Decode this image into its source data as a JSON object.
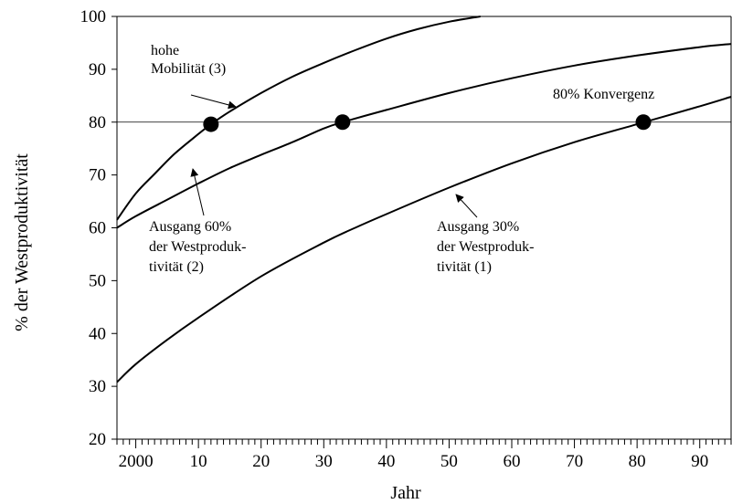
{
  "chart_data": {
    "type": "line",
    "title": "",
    "xlabel": "Jahr",
    "ylabel": "% der Westproduktivität",
    "xlim": [
      1997,
      2095
    ],
    "ylim": [
      20,
      100
    ],
    "x_ticks": [
      2000,
      2010,
      2020,
      2030,
      2040,
      2050,
      2060,
      2070,
      2080,
      2090
    ],
    "x_tick_labels": [
      "2000",
      "10",
      "20",
      "30",
      "40",
      "50",
      "60",
      "70",
      "80",
      "90"
    ],
    "y_ticks": [
      20,
      30,
      40,
      50,
      60,
      70,
      80,
      90,
      100
    ],
    "y_tick_labels": [
      "20",
      "30",
      "40",
      "50",
      "60",
      "70",
      "80",
      "90",
      "100"
    ],
    "grid": false,
    "reference_line": {
      "y": 80,
      "label": "80% Konvergenz"
    },
    "series": [
      {
        "id": "s3",
        "label": "hohe Mobilität (3)",
        "x": [
          1997,
          2000,
          2003,
          2006,
          2009,
          2012,
          2015,
          2020,
          2025,
          2030,
          2035,
          2040,
          2045,
          2050,
          2055
        ],
        "y": [
          61.5,
          66.5,
          70.2,
          73.8,
          76.8,
          79.6,
          82.0,
          85.5,
          88.6,
          91.2,
          93.6,
          95.8,
          97.6,
          99.0,
          100
        ]
      },
      {
        "id": "s2",
        "label": "Ausgang 60% der Westproduktivität (2)",
        "x": [
          1997,
          2000,
          2005,
          2010,
          2015,
          2020,
          2025,
          2030,
          2033,
          2040,
          2050,
          2060,
          2070,
          2080,
          2090,
          2095
        ],
        "y": [
          60,
          62.2,
          65.3,
          68.4,
          71.3,
          73.8,
          76.2,
          78.8,
          80,
          82.3,
          85.5,
          88.3,
          90.7,
          92.6,
          94.2,
          94.8
        ]
      },
      {
        "id": "s1",
        "label": "Ausgang 30% der Westproduktivität (1)",
        "x": [
          1997,
          2000,
          2005,
          2010,
          2020,
          2030,
          2035,
          2040,
          2050,
          2060,
          2070,
          2080,
          2090,
          2095
        ],
        "y": [
          30.8,
          34.2,
          38.8,
          43.0,
          50.8,
          57.2,
          60.0,
          62.6,
          67.6,
          72.2,
          76.2,
          79.6,
          83.0,
          84.8
        ]
      }
    ],
    "markers": [
      {
        "x": 2012,
        "y": 79.6
      },
      {
        "x": 2033,
        "y": 80
      },
      {
        "x": 2081,
        "y": 80
      }
    ],
    "annotations": [
      {
        "id": "a3",
        "lines": [
          "hohe",
          "Mobilität (3)"
        ]
      },
      {
        "id": "a2",
        "lines": [
          "Ausgang 60%",
          "der Westproduk-",
          "tivität (2)"
        ]
      },
      {
        "id": "a1",
        "lines": [
          "Ausgang 30%",
          "der Westproduk-",
          "tivität (1)"
        ]
      }
    ]
  }
}
